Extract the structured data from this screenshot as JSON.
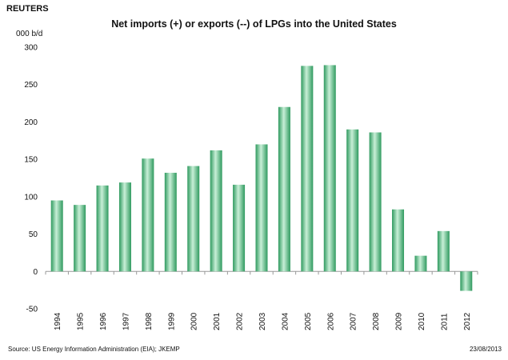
{
  "brand": "REUTERS",
  "units": "000 b/d",
  "source": "Source: US Energy Information Administration (EIA); JKEMP",
  "date": "23/08/2013",
  "colors": {
    "bar_light": "#c8efd7",
    "bar_dark": "#3aa56a",
    "axis": "#999999"
  },
  "chart_data": {
    "type": "bar",
    "title": "Net imports (+) or exports (--) of LPGs into the United States",
    "xlabel": "",
    "ylabel": "000 b/d",
    "categories": [
      "1994",
      "1995",
      "1996",
      "1997",
      "1998",
      "1999",
      "2000",
      "2001",
      "2002",
      "2003",
      "2004",
      "2005",
      "2006",
      "2007",
      "2008",
      "2009",
      "2010",
      "2011",
      "2012"
    ],
    "values": [
      95,
      89,
      115,
      119,
      151,
      132,
      141,
      162,
      116,
      170,
      220,
      275,
      276,
      190,
      186,
      83,
      21,
      54,
      -26
    ],
    "ylim": [
      -50,
      300
    ],
    "yticks": [
      "300",
      "250",
      "200",
      "150",
      "100",
      "50",
      "0",
      "-50"
    ],
    "grid": false,
    "legend": "none"
  }
}
